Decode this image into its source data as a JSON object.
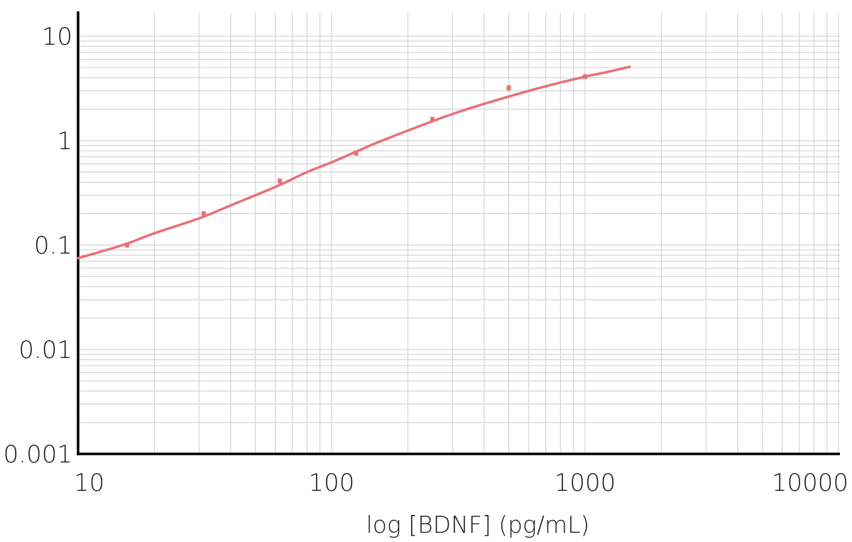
{
  "chart_data": {
    "type": "scatter",
    "title": "",
    "xlabel": "log [BDNF] (pg/mL)",
    "ylabel": "",
    "x_scale": "log",
    "y_scale": "log",
    "xlim": [
      10,
      13000
    ],
    "ylim": [
      0.001,
      15
    ],
    "x_ticks": [
      10,
      100,
      1000,
      10000
    ],
    "x_tick_labels": [
      "10",
      "100",
      "1000",
      "10000"
    ],
    "y_ticks": [
      0.001,
      0.01,
      0.1,
      1,
      10
    ],
    "y_tick_labels": [
      "0.001",
      "0.01",
      "0.1",
      "1",
      "10"
    ],
    "grid": true,
    "color": "#e8707a",
    "series": [
      {
        "x": [
          15.6,
          31.3,
          62.5,
          125,
          250,
          500,
          1000
        ],
        "y": [
          0.1,
          0.2,
          0.41,
          0.76,
          1.6,
          3.2,
          4.1
        ]
      }
    ],
    "fit_curve": {
      "x": [
        10,
        15,
        20,
        30,
        40,
        60,
        80,
        100,
        150,
        200,
        300,
        400,
        600,
        800,
        1000,
        1200,
        1500
      ],
      "y": [
        0.075,
        0.1,
        0.13,
        0.18,
        0.24,
        0.36,
        0.5,
        0.62,
        0.95,
        1.25,
        1.8,
        2.25,
        3.0,
        3.6,
        4.1,
        4.5,
        5.1
      ]
    }
  }
}
